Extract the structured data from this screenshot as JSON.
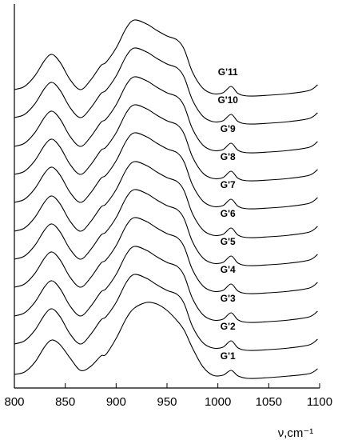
{
  "chart_data": {
    "type": "line",
    "x_label": "ν,cm⁻¹",
    "x": [
      800,
      810,
      820,
      830,
      837,
      845,
      855,
      865,
      875,
      885,
      890,
      900,
      910,
      918,
      930,
      940,
      950,
      960,
      967,
      975,
      985,
      995,
      1005,
      1013,
      1020,
      1030,
      1050,
      1070,
      1090,
      1098
    ],
    "xlim": [
      800,
      1100
    ],
    "xticks": [
      800,
      850,
      900,
      950,
      1000,
      1050,
      1100
    ],
    "ylim": [
      0,
      480
    ],
    "series": [
      {
        "name": "G'1",
        "color": "#000000",
        "values": [
          17,
          20,
          32,
          52,
          60,
          54,
          37,
          22,
          27,
          40,
          42,
          62,
          87,
          100,
          107,
          105,
          97,
          84,
          72,
          50,
          27,
          16,
          16,
          22,
          15,
          12,
          13,
          15,
          18,
          24
        ]
      },
      {
        "name": "G'2",
        "color": "#000000",
        "values": [
          55,
          59,
          72,
          92,
          99,
          89,
          67,
          55,
          67,
          85,
          89,
          107,
          132,
          142,
          137,
          129,
          122,
          117,
          105,
          77,
          57,
          50,
          51,
          59,
          50,
          47,
          48,
          50,
          54,
          61
        ]
      },
      {
        "name": "G'3",
        "color": "#000000",
        "values": [
          90,
          94,
          107,
          127,
          134,
          124,
          102,
          90,
          102,
          120,
          124,
          142,
          167,
          177,
          172,
          164,
          157,
          152,
          140,
          112,
          92,
          85,
          86,
          94,
          85,
          82,
          83,
          85,
          89,
          96
        ]
      },
      {
        "name": "G'4",
        "color": "#000000",
        "values": [
          126,
          130,
          143,
          163,
          170,
          160,
          138,
          126,
          138,
          156,
          160,
          178,
          203,
          213,
          208,
          200,
          193,
          188,
          176,
          148,
          128,
          121,
          122,
          130,
          121,
          118,
          119,
          121,
          125,
          132
        ]
      },
      {
        "name": "G'5",
        "color": "#000000",
        "values": [
          161,
          165,
          178,
          198,
          205,
          195,
          173,
          161,
          173,
          191,
          195,
          213,
          238,
          248,
          243,
          235,
          228,
          223,
          211,
          183,
          163,
          156,
          157,
          165,
          156,
          153,
          154,
          156,
          160,
          167
        ]
      },
      {
        "name": "G'6",
        "color": "#000000",
        "values": [
          196,
          200,
          213,
          233,
          240,
          230,
          208,
          196,
          208,
          226,
          230,
          248,
          273,
          283,
          278,
          270,
          263,
          258,
          246,
          218,
          198,
          191,
          192,
          200,
          191,
          188,
          189,
          191,
          195,
          202
        ]
      },
      {
        "name": "G'7",
        "color": "#000000",
        "values": [
          232,
          236,
          249,
          269,
          276,
          266,
          244,
          232,
          244,
          262,
          266,
          284,
          309,
          319,
          314,
          306,
          299,
          294,
          282,
          254,
          234,
          227,
          228,
          236,
          227,
          224,
          225,
          227,
          231,
          238
        ]
      },
      {
        "name": "G'8",
        "color": "#000000",
        "values": [
          267,
          271,
          284,
          304,
          311,
          301,
          279,
          267,
          279,
          297,
          301,
          319,
          344,
          354,
          349,
          341,
          334,
          329,
          317,
          289,
          269,
          262,
          263,
          271,
          262,
          259,
          260,
          262,
          266,
          273
        ]
      },
      {
        "name": "G'9",
        "color": "#000000",
        "values": [
          302,
          306,
          319,
          339,
          346,
          336,
          314,
          302,
          314,
          332,
          336,
          354,
          379,
          389,
          384,
          376,
          369,
          364,
          352,
          324,
          304,
          297,
          298,
          306,
          297,
          294,
          295,
          297,
          301,
          308
        ]
      },
      {
        "name": "G'10",
        "color": "#000000",
        "values": [
          338,
          342,
          355,
          375,
          382,
          372,
          350,
          338,
          350,
          368,
          372,
          390,
          415,
          425,
          420,
          412,
          405,
          400,
          388,
          360,
          340,
          333,
          334,
          342,
          333,
          330,
          331,
          333,
          337,
          344
        ]
      },
      {
        "name": "G'11",
        "color": "#000000",
        "values": [
          373,
          377,
          390,
          410,
          417,
          407,
          385,
          373,
          385,
          403,
          407,
          425,
          450,
          460,
          455,
          447,
          440,
          435,
          423,
          395,
          375,
          368,
          369,
          377,
          368,
          365,
          366,
          368,
          372,
          379
        ]
      }
    ]
  }
}
